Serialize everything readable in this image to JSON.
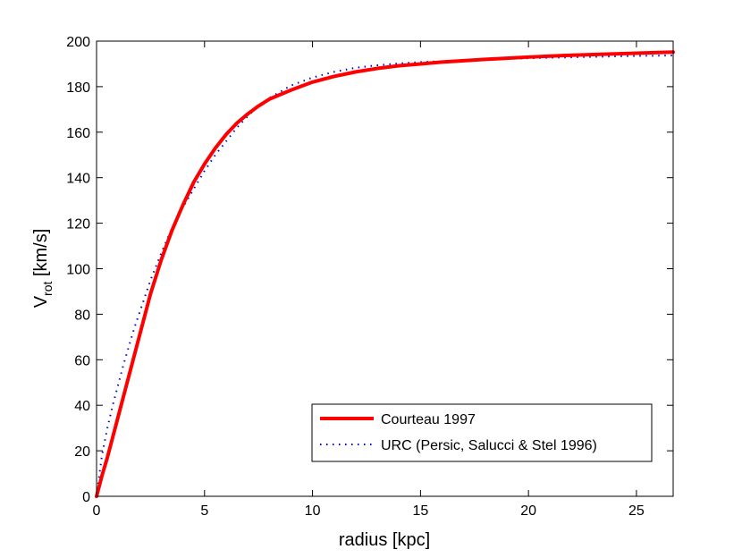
{
  "chart_data": {
    "type": "line",
    "title": "",
    "xlabel": "radius [kpc]",
    "ylabel": {
      "main": "V",
      "subscript": "rot",
      "rest": " [km/s]"
    },
    "xlim": [
      0,
      26.7
    ],
    "ylim": [
      0,
      200
    ],
    "xticks": [
      0,
      5,
      10,
      15,
      20,
      25
    ],
    "yticks": [
      0,
      20,
      40,
      60,
      80,
      100,
      120,
      140,
      160,
      180,
      200
    ],
    "grid": false,
    "legend_position": "bottom-right",
    "series": [
      {
        "name": "Courteau 1997",
        "color": "#ff0000",
        "style": "solid",
        "points": [
          [
            0,
            0
          ],
          [
            0.25,
            9
          ],
          [
            0.5,
            17
          ],
          [
            0.75,
            26
          ],
          [
            1,
            35
          ],
          [
            1.25,
            44
          ],
          [
            1.5,
            53
          ],
          [
            1.75,
            62
          ],
          [
            2,
            71
          ],
          [
            2.5,
            89
          ],
          [
            3,
            104
          ],
          [
            3.5,
            117
          ],
          [
            4,
            128
          ],
          [
            4.5,
            138
          ],
          [
            5,
            146
          ],
          [
            5.5,
            153
          ],
          [
            6,
            159
          ],
          [
            6.5,
            164
          ],
          [
            7,
            168
          ],
          [
            7.5,
            171.5
          ],
          [
            8,
            174.5
          ],
          [
            9,
            178.5
          ],
          [
            10,
            182
          ],
          [
            11,
            184.5
          ],
          [
            12,
            186.5
          ],
          [
            13,
            188
          ],
          [
            14,
            189.2
          ],
          [
            15,
            190
          ],
          [
            16,
            190.8
          ],
          [
            17,
            191.4
          ],
          [
            18,
            192
          ],
          [
            19,
            192.5
          ],
          [
            20,
            193
          ],
          [
            21,
            193.4
          ],
          [
            22,
            193.8
          ],
          [
            23,
            194.1
          ],
          [
            24,
            194.4
          ],
          [
            25,
            194.7
          ],
          [
            26,
            195
          ],
          [
            26.7,
            195.2
          ]
        ]
      },
      {
        "name": "URC (Persic, Salucci & Stel 1996)",
        "color": "#0000cc",
        "style": "dotted",
        "points": [
          [
            0,
            0
          ],
          [
            0.25,
            18
          ],
          [
            0.5,
            30
          ],
          [
            0.75,
            40
          ],
          [
            1,
            49
          ],
          [
            1.25,
            58
          ],
          [
            1.5,
            66
          ],
          [
            1.75,
            74
          ],
          [
            2,
            81
          ],
          [
            2.5,
            95
          ],
          [
            3,
            107
          ],
          [
            3.5,
            118
          ],
          [
            4,
            127
          ],
          [
            4.5,
            135
          ],
          [
            5,
            143
          ],
          [
            5.5,
            150
          ],
          [
            6,
            156
          ],
          [
            6.5,
            162
          ],
          [
            7,
            167
          ],
          [
            7.5,
            171.5
          ],
          [
            8,
            175
          ],
          [
            9,
            180.5
          ],
          [
            10,
            184
          ],
          [
            11,
            186.5
          ],
          [
            12,
            188.3
          ],
          [
            13,
            189.4
          ],
          [
            14,
            190.2
          ],
          [
            15,
            190.8
          ],
          [
            16,
            191.2
          ],
          [
            17,
            191.6
          ],
          [
            18,
            191.9
          ],
          [
            19,
            192.2
          ],
          [
            20,
            192.5
          ],
          [
            21,
            192.7
          ],
          [
            22,
            192.9
          ],
          [
            23,
            193.1
          ],
          [
            24,
            193.3
          ],
          [
            25,
            193.5
          ],
          [
            26,
            193.6
          ],
          [
            26.7,
            193.7
          ]
        ]
      }
    ]
  }
}
